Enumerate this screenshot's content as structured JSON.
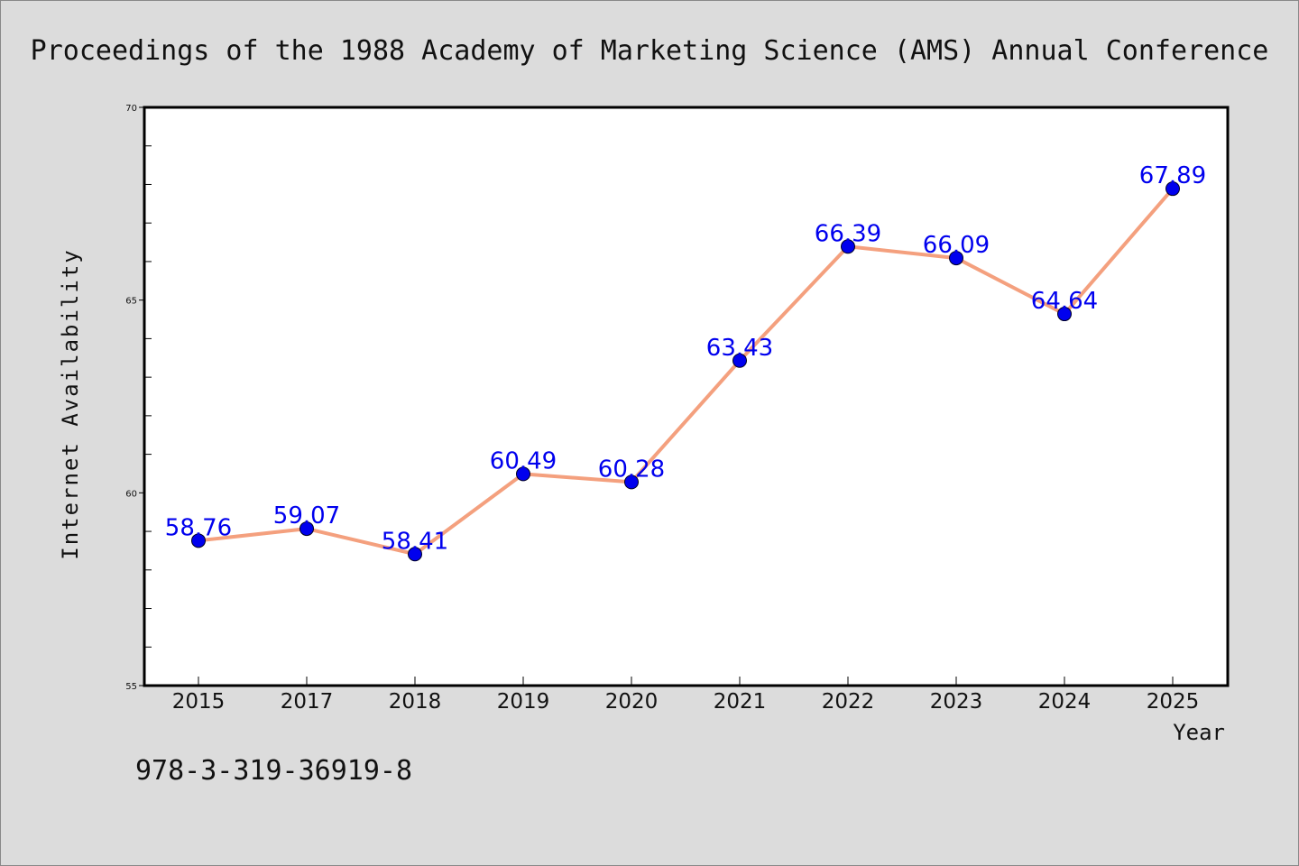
{
  "page": {
    "title": "Proceedings of the 1988 Academy of Marketing Science (AMS) Annual Conference",
    "isbn": "978-3-319-36919-8"
  },
  "chart_data": {
    "type": "line",
    "title": "Proceedings of the 1988 Academy of Marketing Science (AMS) Annual Conference",
    "xlabel": "Year",
    "ylabel": "Internet Availability",
    "categories": [
      "2015",
      "2017",
      "2018",
      "2019",
      "2020",
      "2021",
      "2022",
      "2023",
      "2024",
      "2025"
    ],
    "series": [
      {
        "values": [
          58.76,
          59.07,
          58.41,
          60.49,
          60.28,
          63.43,
          66.39,
          66.09,
          64.64,
          67.89
        ],
        "labels": [
          "58.76",
          "59.07",
          "58.41",
          "60.49",
          "60.28",
          "63.43",
          "66.39",
          "66.09",
          "64.64",
          "67.89"
        ]
      }
    ],
    "ylim": [
      55,
      70
    ],
    "yticks": [
      "55",
      "60",
      "65",
      "70"
    ],
    "y_minor_step": 1,
    "grid": false,
    "legend": "none",
    "colors": {
      "line": "#f4a07e",
      "marker": "#0000ee",
      "label": "#0000ee",
      "background": "#dcdcdc",
      "plot_bg": "#ffffff"
    }
  }
}
